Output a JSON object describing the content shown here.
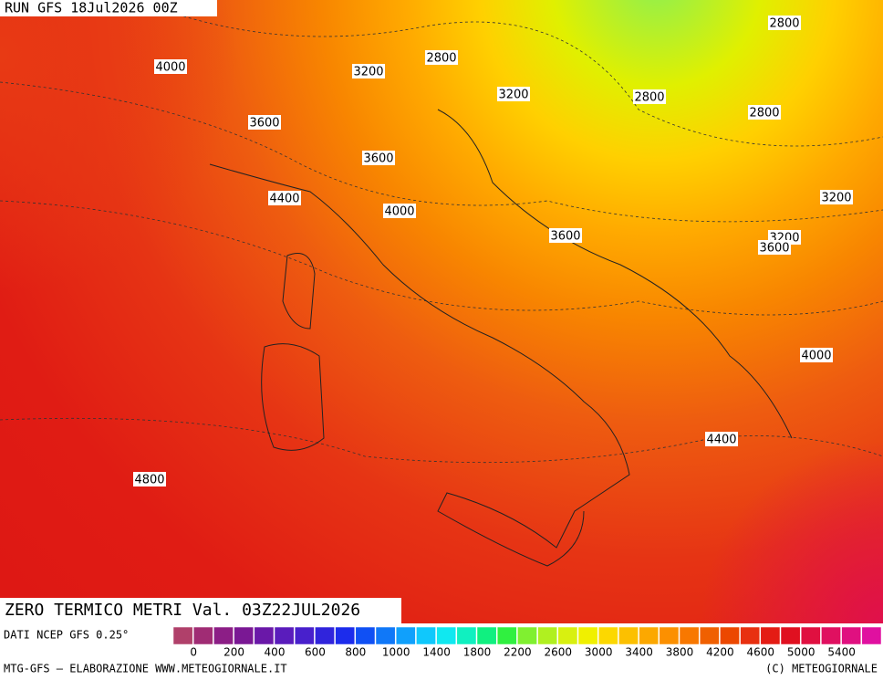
{
  "header": {
    "run": "RUN GFS 18Jul2026 00Z"
  },
  "contour_labels": [
    4000,
    2800,
    3200,
    2800,
    3200,
    2800,
    2800,
    3600,
    3600,
    4400,
    4000,
    3200,
    3600,
    3200,
    3600,
    4000,
    4400,
    4800
  ],
  "title": "ZERO TERMICO METRI Val. 03Z22JUL2026",
  "source": "DATI NCEP GFS 0.25°",
  "colorbar": {
    "labels": [
      0,
      200,
      400,
      600,
      800,
      1000,
      1400,
      1800,
      2200,
      2600,
      3000,
      3400,
      3800,
      4200,
      4600,
      5000,
      5400
    ],
    "colors": [
      "#b0406a",
      "#a02c74",
      "#8c1e86",
      "#7a1894",
      "#6a18a8",
      "#5a1cbc",
      "#4820cc",
      "#3024dc",
      "#1c2cec",
      "#1050f4",
      "#1078f8",
      "#10a0fc",
      "#10c8fc",
      "#10e8f0",
      "#10f0c0",
      "#10f080",
      "#30f040",
      "#80f030",
      "#b0f020",
      "#d8f010",
      "#f0f000",
      "#fcd800",
      "#fcc000",
      "#fca800",
      "#fc9000",
      "#f87800",
      "#f06000",
      "#ec4800",
      "#e83010",
      "#e41c14",
      "#e01020",
      "#e01040",
      "#e01060",
      "#e01080",
      "#e010a0"
    ]
  },
  "footer": {
    "left": "MTG-GFS — ELABORAZIONE WWW.METEOGIORNALE.IT",
    "right": "(C) METEOGIORNALE"
  }
}
